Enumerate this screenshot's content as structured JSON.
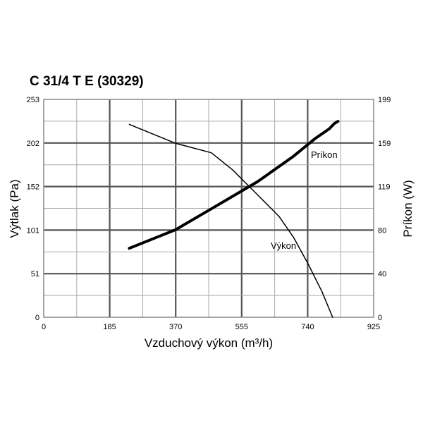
{
  "chart_data": {
    "type": "line",
    "title": "C 31/4 T E (30329)",
    "xlabel": "Vzduchový výkon (m³/h)",
    "ylabel_left": "Výtlak (Pa)",
    "ylabel_right": "Príkon (W)",
    "xlim": [
      0,
      925
    ],
    "ylim_left": [
      0,
      253
    ],
    "ylim_right": [
      0,
      199
    ],
    "x_ticks": [
      "0",
      "185",
      "370",
      "555",
      "740",
      "925"
    ],
    "y_left_ticks": [
      "0",
      "51",
      "101",
      "152",
      "202",
      "253"
    ],
    "y_right_ticks": [
      "0",
      "40",
      "80",
      "119",
      "159",
      "199"
    ],
    "grid": true,
    "grid_minor_per_major": 2,
    "series": [
      {
        "name": "Výkon",
        "axis": "left",
        "stroke_width": 1.5,
        "x": [
          240,
          370,
          470,
          530,
          600,
          660,
          700,
          740,
          780,
          810
        ],
        "y": [
          224,
          202,
          191,
          171,
          142,
          117,
          93,
          63,
          30,
          0
        ]
      },
      {
        "name": "Príkon",
        "axis": "right",
        "stroke_width": 4,
        "x": [
          240,
          370,
          480,
          600,
          700,
          760,
          800,
          815,
          825
        ],
        "y": [
          63,
          80,
          101,
          124,
          147,
          163,
          172,
          177,
          179
        ]
      }
    ]
  }
}
